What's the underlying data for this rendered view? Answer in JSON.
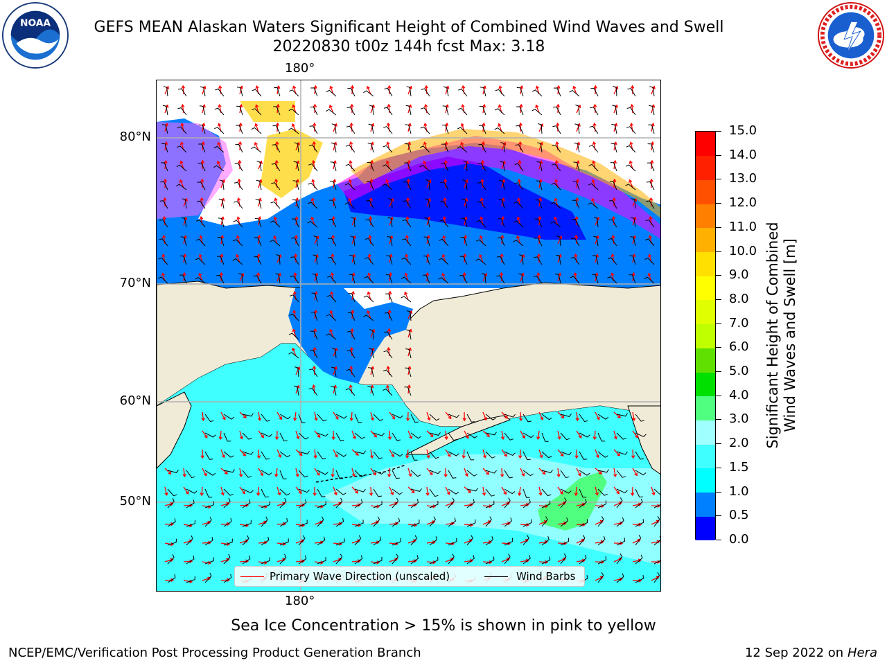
{
  "title": {
    "line1": "GEFS MEAN Alaskan Waters Significant Height of Combined Wind Waves and Swell",
    "line2": "20220830 t00z 144h fcst   Max: 3.18"
  },
  "logos": {
    "left": {
      "name": "noaa-logo",
      "text": "NOAA",
      "ring_text": "NATIONAL OCEANIC AND ATMOSPHERIC ADMINISTRATION · U.S. DEPARTMENT OF COMMERCE"
    },
    "right": {
      "name": "nws-logo",
      "ring_text": "NATIONAL WEATHER SERVICE"
    }
  },
  "map": {
    "lon_labels": [
      "180°",
      "180°"
    ],
    "lat_labels": [
      "80°N",
      "70°N",
      "60°N",
      "50°N"
    ],
    "colors": {
      "land": "#efebd7",
      "coast": "#000000",
      "grid": "#b0b0b0",
      "wave_arrow": "#ff0000",
      "wind_barb": "#000000"
    },
    "sea_ice": {
      "colors": [
        "#ff00ff",
        "#ff66ff",
        "#ffb000",
        "#ffd000"
      ]
    }
  },
  "legend": {
    "items": [
      {
        "label": "Primary Wave Direction (unscaled)",
        "color": "#ff0000"
      },
      {
        "label": "Wind Barbs",
        "color": "#000000"
      }
    ]
  },
  "colorbar": {
    "label_line1": "Significant Height of Combined",
    "label_line2": "Wind Waves and Swell [m]",
    "ticks": [
      "0.0",
      "0.5",
      "1.0",
      "1.5",
      "2.0",
      "3.0",
      "4.0",
      "5.0",
      "6.0",
      "7.0",
      "8.0",
      "9.0",
      "10.0",
      "11.0",
      "12.0",
      "13.0",
      "14.0",
      "15.0"
    ],
    "colors": [
      "#0000ff",
      "#0080ff",
      "#00ffff",
      "#40ffff",
      "#a0ffff",
      "#50ff80",
      "#00e000",
      "#60e000",
      "#c0ff00",
      "#e0ff00",
      "#ffff00",
      "#ffe000",
      "#ffb000",
      "#ff8000",
      "#ff5000",
      "#ff2000",
      "#ff0000"
    ]
  },
  "chart_data": {
    "type": "heatmap",
    "title": "GEFS MEAN Alaskan Waters Significant Height of Combined Wind Waves and Swell",
    "subtitle": "20220830 t00z 144h fcst   Max: 3.18",
    "variable": "Significant Height of Combined Wind Waves and Swell [m]",
    "max": 3.18,
    "colorbar_levels": [
      0.0,
      0.5,
      1.0,
      1.5,
      2.0,
      3.0,
      4.0,
      5.0,
      6.0,
      7.0,
      8.0,
      9.0,
      10.0,
      11.0,
      12.0,
      13.0,
      14.0,
      15.0
    ],
    "lat_gridlines": [
      "80°N",
      "70°N",
      "60°N",
      "50°N"
    ],
    "lon_gridlines": [
      "180°"
    ]
  },
  "footnote": "Sea Ice Concentration > 15% is shown in pink to yellow",
  "footer": {
    "left": "NCEP/EMC/Verification Post Processing Product Generation Branch",
    "right_prefix": "12 Sep 2022 on",
    "right_host": "Hera"
  }
}
